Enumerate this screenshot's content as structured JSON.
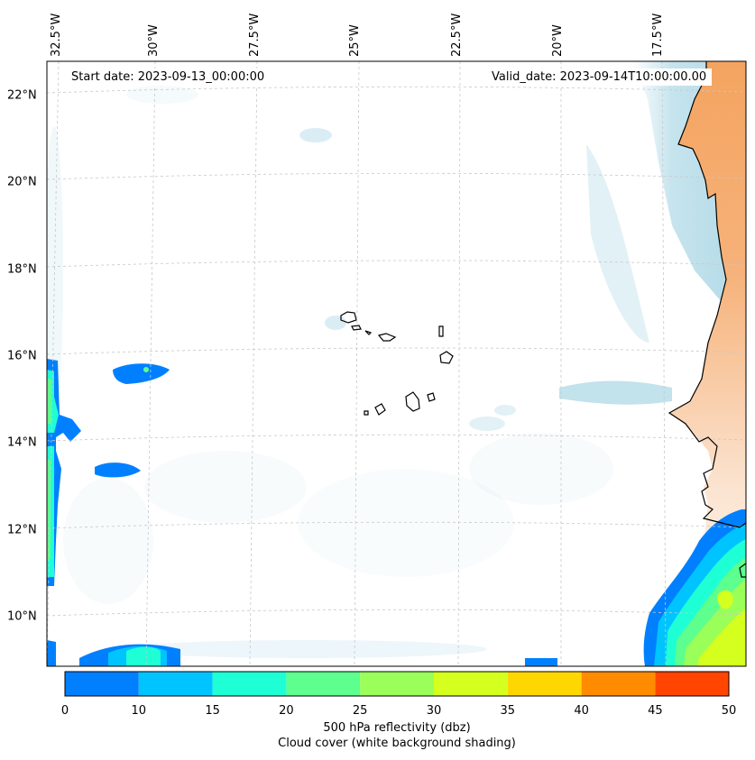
{
  "map": {
    "start_date": "Start date: 2023-09-13_00:00:00",
    "valid_date": "Valid_date: 2023-09-14T10:00:00.00",
    "lat_labels": [
      {
        "lat": 22,
        "text": "22°N"
      },
      {
        "lat": 20,
        "text": "20°N"
      },
      {
        "lat": 18,
        "text": "18°N"
      },
      {
        "lat": 16,
        "text": "16°N"
      },
      {
        "lat": 14,
        "text": "14°N"
      },
      {
        "lat": 12,
        "text": "12°N"
      },
      {
        "lat": 10,
        "text": "10°N"
      }
    ],
    "lon_labels": [
      {
        "lon": -32.5,
        "text": "32.5°W"
      },
      {
        "lon": -30,
        "text": "30°W"
      },
      {
        "lon": -27.5,
        "text": "27.5°W"
      },
      {
        "lon": -25,
        "text": "25°W"
      },
      {
        "lon": -22.5,
        "text": "22.5°W"
      },
      {
        "lon": -20,
        "text": "20°W"
      },
      {
        "lon": -17.5,
        "text": "17.5°W"
      }
    ],
    "features": [
      "cabo-verde-islands",
      "west-african-coastline",
      "reflectivity-patches",
      "cloud-cover-shading"
    ],
    "colors": {
      "land": "#f4a460",
      "cloud": "#add8e6",
      "coastline": "#000000",
      "gridline": "#c8c8c8"
    }
  },
  "colorbar": {
    "title_line1": "500 hPa reflectivity (dbz)",
    "title_line2": "Cloud cover (white background shading)",
    "ticks": [
      "0",
      "10",
      "15",
      "20",
      "25",
      "30",
      "35",
      "40",
      "45",
      "50"
    ],
    "colors": [
      "#0080ff",
      "#00c4ff",
      "#1effd5",
      "#5dff8e",
      "#9aff58",
      "#d5ff1e",
      "#ffd700",
      "#ff8c00",
      "#ff4500"
    ]
  }
}
